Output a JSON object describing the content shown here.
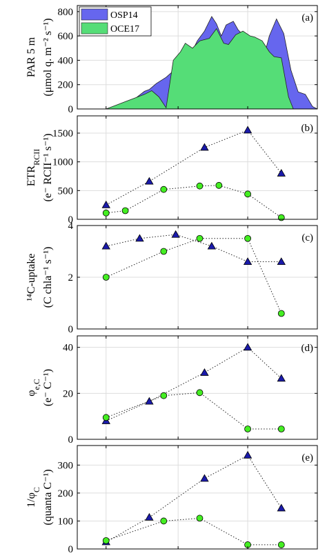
{
  "chart_data": [
    {
      "panel": "(a)",
      "type": "area",
      "ylabel_line1": "PAR 5 m",
      "ylabel_line2": "(μmol q. m⁻² s⁻¹)",
      "ylim": [
        0,
        850
      ],
      "yticks": [
        0,
        200,
        400,
        600,
        800
      ],
      "legend": "top-left",
      "series": [
        {
          "name": "OSP14",
          "color": "#6666ee",
          "x": [
            0.0,
            0.14,
            0.17,
            0.2,
            0.25,
            0.28,
            0.3,
            0.33,
            0.37,
            0.41,
            0.45,
            0.48,
            0.5,
            0.53,
            0.56,
            0.58,
            0.6,
            0.62,
            0.65,
            0.67,
            0.7,
            0.72,
            0.74,
            0.76,
            0.78,
            0.8,
            0.83,
            0.86,
            0.89,
            0.92,
            0.95,
            0.98,
            1.0
          ],
          "values": [
            0,
            0,
            5,
            30,
            100,
            145,
            160,
            210,
            260,
            330,
            420,
            480,
            560,
            640,
            760,
            700,
            600,
            690,
            720,
            650,
            590,
            570,
            520,
            550,
            450,
            600,
            740,
            620,
            320,
            140,
            120,
            20,
            0
          ]
        },
        {
          "name": "OCE17",
          "color": "#55dd77",
          "x": [
            0.0,
            0.12,
            0.16,
            0.2,
            0.24,
            0.28,
            0.31,
            0.34,
            0.37,
            0.4,
            0.43,
            0.45,
            0.48,
            0.51,
            0.55,
            0.58,
            0.61,
            0.63,
            0.66,
            0.69,
            0.72,
            0.74,
            0.77,
            0.8,
            0.82,
            0.85,
            0.88,
            0.9,
            1.0
          ],
          "values": [
            0,
            0,
            30,
            60,
            90,
            120,
            150,
            100,
            10,
            400,
            470,
            540,
            500,
            560,
            580,
            660,
            540,
            530,
            610,
            640,
            600,
            590,
            560,
            470,
            430,
            420,
            100,
            0,
            0
          ]
        }
      ]
    },
    {
      "panel": "(b)",
      "type": "scatter",
      "ylabel_line1": "ETR",
      "ylabel_sub": "RCII",
      "ylabel_line2": "(e⁻ RCII⁻¹ s⁻¹)",
      "ylim": [
        0,
        1800
      ],
      "yticks": [
        0,
        500,
        1000,
        1500
      ],
      "series": [
        {
          "name": "OSP14",
          "marker": "triangle",
          "x": [
            0.12,
            0.3,
            0.53,
            0.71,
            0.85
          ],
          "values": [
            250,
            660,
            1250,
            1550,
            800
          ]
        },
        {
          "name": "OCE17",
          "marker": "circle",
          "x": [
            0.12,
            0.2,
            0.36,
            0.51,
            0.59,
            0.71,
            0.85
          ],
          "values": [
            110,
            150,
            520,
            580,
            590,
            440,
            30
          ]
        }
      ]
    },
    {
      "panel": "(c)",
      "type": "scatter",
      "ylabel_line1": "¹⁴C-uptake",
      "ylabel_line2": "(C chla⁻¹ s⁻¹)",
      "ylim": [
        0,
        4
      ],
      "yticks": [
        0,
        2,
        4
      ],
      "series": [
        {
          "name": "OSP14",
          "marker": "triangle",
          "x": [
            0.12,
            0.26,
            0.41,
            0.56,
            0.71,
            0.85
          ],
          "values": [
            3.2,
            3.5,
            3.65,
            3.2,
            2.6,
            2.6
          ]
        },
        {
          "name": "OCE17",
          "marker": "circle",
          "x": [
            0.12,
            0.36,
            0.51,
            0.71,
            0.85
          ],
          "values": [
            2.0,
            3.0,
            3.5,
            3.5,
            0.6
          ]
        }
      ]
    },
    {
      "panel": "(d)",
      "type": "scatter",
      "ylabel_line1": "φ",
      "ylabel_sub": "e,C",
      "ylabel_line2": "(e⁻ C⁻¹)",
      "ylim": [
        0,
        45
      ],
      "yticks": [
        0,
        20,
        40
      ],
      "series": [
        {
          "name": "OSP14",
          "marker": "triangle",
          "x": [
            0.12,
            0.3,
            0.53,
            0.71,
            0.85
          ],
          "values": [
            8,
            16.5,
            29,
            40,
            26.5
          ]
        },
        {
          "name": "OCE17",
          "marker": "circle",
          "x": [
            0.12,
            0.36,
            0.51,
            0.71,
            0.85
          ],
          "values": [
            9.5,
            19,
            20.3,
            4.5,
            4.5
          ]
        }
      ]
    },
    {
      "panel": "(e)",
      "type": "scatter",
      "ylabel_line1": "1/φ",
      "ylabel_sub": "C",
      "ylabel_line2": "(quanta C⁻¹)",
      "ylim": [
        0,
        370
      ],
      "yticks": [
        0,
        100,
        200,
        300
      ],
      "series": [
        {
          "name": "OSP14",
          "marker": "triangle",
          "x": [
            0.12,
            0.3,
            0.53,
            0.71,
            0.85
          ],
          "values": [
            25,
            113,
            252,
            335,
            146
          ]
        },
        {
          "name": "OCE17",
          "marker": "circle",
          "x": [
            0.12,
            0.36,
            0.51,
            0.71,
            0.85
          ],
          "values": [
            30,
            100,
            110,
            15,
            15
          ]
        }
      ]
    }
  ],
  "legend": {
    "entries": [
      {
        "label": "OSP14",
        "color": "#6666ee"
      },
      {
        "label": "OCE17",
        "color": "#55dd77"
      }
    ]
  },
  "style": {
    "triangle_color": "#1a1aaa",
    "circle_color": "#44ee22",
    "grid": true,
    "grid_color": "#dddddd"
  }
}
